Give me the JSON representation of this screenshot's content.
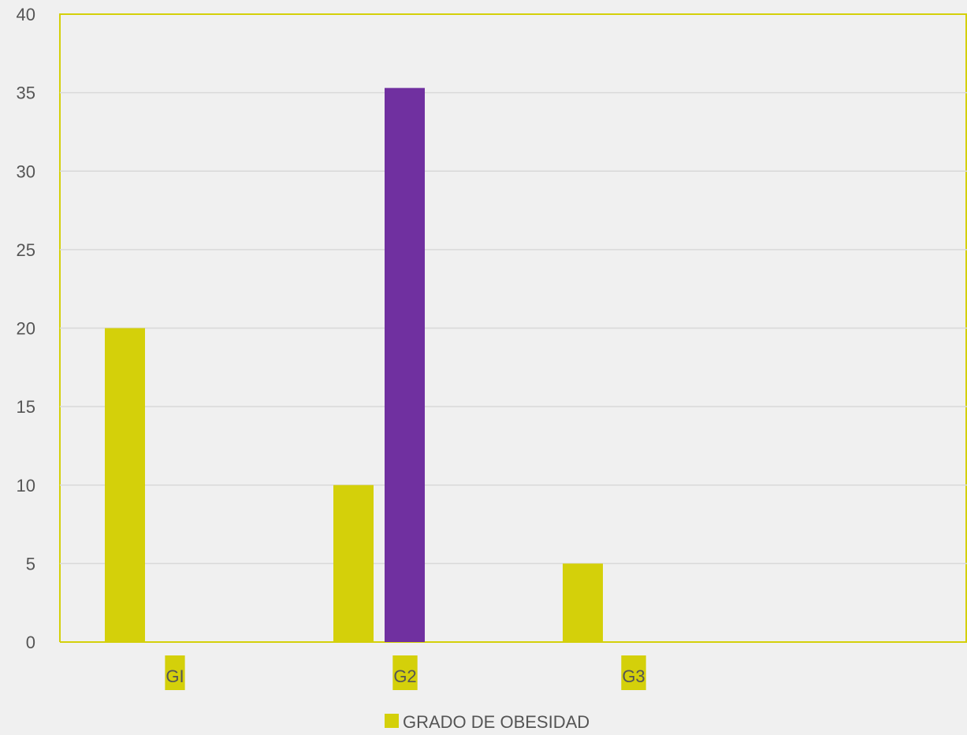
{
  "chart_data": {
    "type": "bar",
    "categories": [
      "GI",
      "G2",
      "G3"
    ],
    "series": [
      {
        "name": "GRADO DE OBESIDAD",
        "values": [
          20,
          10,
          5
        ],
        "color": "#d4d00a"
      },
      {
        "values": [
          0,
          35.3,
          0
        ],
        "color": "#7030a0"
      }
    ],
    "yticks": [
      "0",
      "5",
      "10",
      "15",
      "20",
      "25",
      "30",
      "35",
      "40"
    ],
    "ylim": [
      0,
      40
    ],
    "grid": true,
    "legend_position": "bottom",
    "category_label_highlight": "#d4d00a",
    "axis_color": "#d4d00a",
    "grid_color": "#d9d9d9"
  }
}
